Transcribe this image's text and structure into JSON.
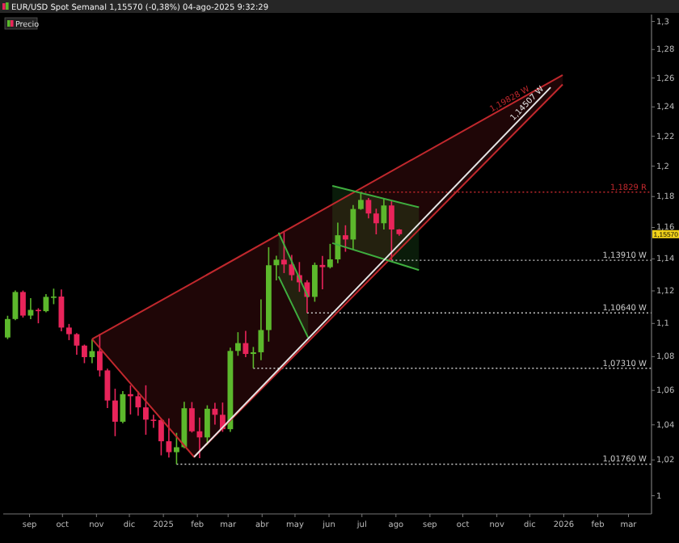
{
  "chart_data": {
    "type": "candlestick",
    "title": "EUR/USD Spot Semanal 1,15570 (-0,38%) 04-ago-2025 9:32:29",
    "log": "y",
    "legend": "top left",
    "xlim": [
      "2024-08-08",
      "2026-03-22"
    ],
    "ylim": [
      0.99,
      1.305
    ],
    "xticks": [
      {
        "value": "2024-09-01",
        "label": "sep"
      },
      {
        "value": "2024-10-01",
        "label": "oct"
      },
      {
        "value": "2024-11-01",
        "label": "nov"
      },
      {
        "value": "2024-12-01",
        "label": "dic"
      },
      {
        "value": "2025-01-01",
        "label": "2025"
      },
      {
        "value": "2025-02-01",
        "label": "feb"
      },
      {
        "value": "2025-03-01",
        "label": "mar"
      },
      {
        "value": "2025-04-01",
        "label": "abr"
      },
      {
        "value": "2025-05-01",
        "label": "may"
      },
      {
        "value": "2025-06-01",
        "label": "jun"
      },
      {
        "value": "2025-07-01",
        "label": "jul"
      },
      {
        "value": "2025-08-01",
        "label": "ago"
      },
      {
        "value": "2025-09-01",
        "label": "sep"
      },
      {
        "value": "2025-10-01",
        "label": "oct"
      },
      {
        "value": "2025-11-01",
        "label": "nov"
      },
      {
        "value": "2025-12-01",
        "label": "dic"
      },
      {
        "value": "2026-01-01",
        "label": "2026"
      },
      {
        "value": "2026-02-01",
        "label": "feb"
      },
      {
        "value": "2026-03-01",
        "label": "mar"
      }
    ],
    "yticks": [
      1,
      {
        "value": 1.02,
        "label": "1,02"
      },
      {
        "value": 1.04,
        "label": "1,04"
      },
      {
        "value": 1.06,
        "label": "1,06"
      },
      {
        "value": 1.08,
        "label": "1,08"
      },
      {
        "value": 1.1,
        "label": "1,1"
      },
      {
        "value": 1.12,
        "label": "1,12"
      },
      {
        "value": 1.14,
        "label": "1,14"
      },
      {
        "value": 1.16,
        "label": "1,16"
      },
      {
        "value": 1.18,
        "label": "1,18"
      },
      {
        "value": 1.2,
        "label": "1,2"
      },
      {
        "value": 1.22,
        "label": "1,22"
      },
      {
        "value": 1.24,
        "label": "1,24"
      },
      {
        "value": 1.26,
        "label": "1,26"
      },
      {
        "value": 1.28,
        "label": "1,28"
      },
      {
        "value": 1.3,
        "label": "1,3"
      }
    ],
    "series": [
      {
        "type": "line",
        "color": "#c0282d",
        "x": [
          "2024-10-28",
          "2025-01-29",
          "2025-12-31"
        ],
        "values": [
          1.0905,
          1.1255,
          1.262
        ],
        "lower": [
          1.0905,
          1.0217,
          1.2555
        ],
        "upper": [
          1.0905,
          1.1255,
          1.262
        ]
      },
      {
        "name": "Precio",
        "x": [
          "2024-08-12",
          "2024-08-19",
          "2024-08-26",
          "2024-09-02",
          "2024-09-09",
          "2024-09-16",
          "2024-09-23",
          "2024-09-30",
          "2024-10-07",
          "2024-10-14",
          "2024-10-21",
          "2024-10-28",
          "2024-11-04",
          "2024-11-11",
          "2024-11-18",
          "2024-11-25",
          "2024-12-02",
          "2024-12-09",
          "2024-12-16",
          "2024-12-23",
          "2024-12-30",
          "2025-01-06",
          "2025-01-13",
          "2025-01-20",
          "2025-01-27",
          "2025-02-03",
          "2025-02-10",
          "2025-02-17",
          "2025-02-24",
          "2025-03-03",
          "2025-03-10",
          "2025-03-17",
          "2025-03-24",
          "2025-03-31",
          "2025-04-07",
          "2025-04-14",
          "2025-04-21",
          "2025-04-28",
          "2025-05-05",
          "2025-05-12",
          "2025-05-19",
          "2025-05-26",
          "2025-06-02",
          "2025-06-09",
          "2025-06-16",
          "2025-06-23",
          "2025-06-30",
          "2025-07-07",
          "2025-07-14",
          "2025-07-21",
          "2025-07-28",
          "2025-08-04"
        ],
        "ohlc": [
          [
            1.0915,
            1.1047,
            1.0905,
            1.1027
          ],
          [
            1.1027,
            1.1202,
            1.102,
            1.1193
          ],
          [
            1.1193,
            1.1202,
            1.1036,
            1.1048
          ],
          [
            1.1048,
            1.1155,
            1.1026,
            1.1083
          ],
          [
            1.1083,
            1.1093,
            1.1001,
            1.1075
          ],
          [
            1.1075,
            1.118,
            1.1068,
            1.1163
          ],
          [
            1.1163,
            1.1214,
            1.1118,
            1.1165
          ],
          [
            1.1165,
            1.1209,
            1.0952,
            1.0975
          ],
          [
            1.0975,
            1.0997,
            1.0899,
            1.0935
          ],
          [
            1.0935,
            1.0941,
            1.0811,
            1.0866
          ],
          [
            1.0866,
            1.0872,
            1.0761,
            1.0797
          ],
          [
            1.0797,
            1.0905,
            1.0761,
            1.0833
          ],
          [
            1.0833,
            1.0937,
            1.0682,
            1.0718
          ],
          [
            1.0718,
            1.0728,
            1.0497,
            1.0541
          ],
          [
            1.0541,
            1.061,
            1.0335,
            1.0418
          ],
          [
            1.0418,
            1.0596,
            1.041,
            1.0578
          ],
          [
            1.0578,
            1.063,
            1.046,
            1.0566
          ],
          [
            1.0566,
            1.0594,
            1.0453,
            1.0501
          ],
          [
            1.0501,
            1.063,
            1.0343,
            1.043
          ],
          [
            1.043,
            1.0458,
            1.0383,
            1.0428
          ],
          [
            1.0428,
            1.0437,
            1.0226,
            1.0306
          ],
          [
            1.0306,
            1.0437,
            1.0214,
            1.0244
          ],
          [
            1.0244,
            1.0354,
            1.0176,
            1.0272
          ],
          [
            1.0272,
            1.0533,
            1.0266,
            1.0496
          ],
          [
            1.0496,
            1.0532,
            1.0356,
            1.0363
          ],
          [
            1.0363,
            1.0442,
            1.021,
            1.0328
          ],
          [
            1.0328,
            1.0513,
            1.0286,
            1.0493
          ],
          [
            1.0493,
            1.0528,
            1.0401,
            1.0458
          ],
          [
            1.0458,
            1.0529,
            1.036,
            1.0375
          ],
          [
            1.0375,
            1.0854,
            1.036,
            1.0834
          ],
          [
            1.0834,
            1.0947,
            1.0805,
            1.0881
          ],
          [
            1.0881,
            1.0955,
            1.0797,
            1.0816
          ],
          [
            1.0816,
            1.0858,
            1.0731,
            1.0826
          ],
          [
            1.0826,
            1.1147,
            1.0779,
            1.096
          ],
          [
            1.096,
            1.1474,
            1.089,
            1.136
          ],
          [
            1.136,
            1.142,
            1.1265,
            1.1395
          ],
          [
            1.1395,
            1.1573,
            1.1311,
            1.1365
          ],
          [
            1.1365,
            1.1425,
            1.1264,
            1.1298
          ],
          [
            1.1298,
            1.138,
            1.1194,
            1.1253
          ],
          [
            1.1253,
            1.1266,
            1.1064,
            1.1163
          ],
          [
            1.1163,
            1.1377,
            1.1133,
            1.1362
          ],
          [
            1.1362,
            1.1419,
            1.121,
            1.1348
          ],
          [
            1.1348,
            1.1495,
            1.134,
            1.1397
          ],
          [
            1.1397,
            1.1631,
            1.1373,
            1.155
          ],
          [
            1.155,
            1.1614,
            1.1445,
            1.1523
          ],
          [
            1.1523,
            1.1745,
            1.1458,
            1.1719
          ],
          [
            1.1719,
            1.1829,
            1.1714,
            1.1778
          ],
          [
            1.1778,
            1.1791,
            1.1659,
            1.169
          ],
          [
            1.169,
            1.1721,
            1.1556,
            1.1627
          ],
          [
            1.1627,
            1.1789,
            1.1587,
            1.1742
          ],
          [
            1.1742,
            1.177,
            1.1391,
            1.1587
          ],
          [
            1.1587,
            1.159,
            1.1547,
            1.1557
          ]
        ],
        "colors": [
          "#5cb82c",
          "#5cb82c",
          "#e8245a",
          "#5cb82c",
          "#e8245a",
          "#5cb82c",
          "#5cb82c",
          "#e8245a",
          "#e8245a",
          "#e8245a",
          "#e8245a",
          "#5cb82c",
          "#e8245a",
          "#e8245a",
          "#e8245a",
          "#5cb82c",
          "#e8245a",
          "#e8245a",
          "#e8245a",
          "#e8245a",
          "#e8245a",
          "#e8245a",
          "#5cb82c",
          "#5cb82c",
          "#e8245a",
          "#e8245a",
          "#5cb82c",
          "#e8245a",
          "#e8245a",
          "#5cb82c",
          "#5cb82c",
          "#e8245a",
          "#5cb82c",
          "#5cb82c",
          "#5cb82c",
          "#5cb82c",
          "#e8245a",
          "#e8245a",
          "#e8245a",
          "#e8245a",
          "#5cb82c",
          "#e8245a",
          "#5cb82c",
          "#5cb82c",
          "#e8245a",
          "#5cb82c",
          "#5cb82c",
          "#e8245a",
          "#e8245a",
          "#5cb82c",
          "#e8245a",
          "#e8245a"
        ]
      },
      {
        "type": "line",
        "color": "#3fae3f",
        "x": [
          "2025-04-16",
          "2025-05-13"
        ],
        "values": [
          1.1567,
          1.1161
        ],
        "lower": [
          1.129,
          1.0914
        ],
        "upper": [
          1.1567,
          1.1161
        ]
      },
      {
        "type": "line",
        "color": "#3fae3f",
        "x": [
          "2025-06-04",
          "2025-08-22"
        ],
        "values": [
          1.187,
          1.173
        ],
        "lower": [
          1.15,
          1.133
        ],
        "upper": [
          1.187,
          1.173
        ]
      },
      {
        "type": "line",
        "color": "#c0282d",
        "x": [
          "2024-10-28",
          "2025-01-29",
          "2025-12-31"
        ],
        "values": [
          1.0905,
          1.0217,
          1.2555
        ]
      },
      {
        "type": "line",
        "color": "#3fae3f",
        "x": [
          "2025-04-16",
          "2025-05-13"
        ],
        "values": [
          1.129,
          1.0914
        ]
      },
      {
        "type": "line",
        "color": "#3fae3f",
        "x": [
          "2025-06-04",
          "2025-08-22"
        ],
        "values": [
          1.15,
          1.133
        ]
      },
      {
        "type": "line",
        "color": "#e6e6e6",
        "x": [
          "2025-01-29",
          "2025-12-20"
        ],
        "values": [
          1.0217,
          1.2535
        ]
      }
    ],
    "ref_lines": [
      {
        "axis": "y",
        "value": 1.1829,
        "label": "1,1829 R",
        "color": "#c0282d",
        "line_style": "dotted"
      },
      {
        "axis": "y",
        "value": 1.1391,
        "label": "1,13910 W",
        "color": "#c8c8c8",
        "line_style": "dotted"
      },
      {
        "axis": "y",
        "value": 1.1064,
        "label": "1,10640 W",
        "color": "#c8c8c8",
        "line_style": "dotted"
      },
      {
        "axis": "y",
        "value": 1.0731,
        "label": "1,07310 W",
        "color": "#c8c8c8",
        "line_style": "dotted"
      },
      {
        "axis": "y",
        "value": 1.0176,
        "label": "1,01760 W",
        "color": "#c8c8c8",
        "line_style": "dotted"
      }
    ],
    "annotations": [
      {
        "text": "1,19828 W",
        "x": "2025-11-15",
        "y": 1.2422
      },
      {
        "text": "1,14507 W",
        "x": "2025-12-02",
        "y": 1.2399
      },
      "1,15570"
    ]
  }
}
